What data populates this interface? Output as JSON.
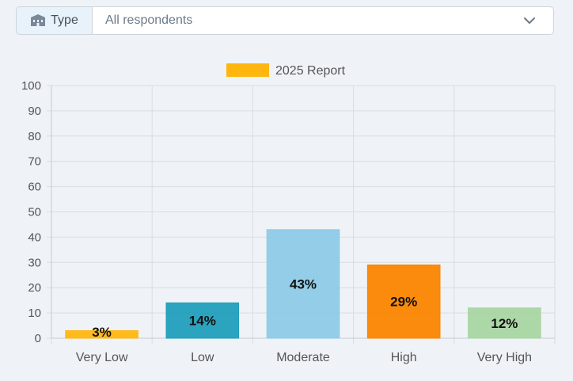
{
  "filter": {
    "label": "Type",
    "label_icon": "building-icon",
    "selected": "All respondents",
    "dropdown_icon": "chevron-down-icon"
  },
  "chart_data": {
    "type": "bar",
    "categories": [
      "Very Low",
      "Low",
      "Moderate",
      "High",
      "Very High"
    ],
    "series": [
      {
        "name": "2025 Report",
        "values": [
          3,
          14,
          43,
          29,
          12
        ]
      }
    ],
    "data_labels": [
      "3%",
      "14%",
      "43%",
      "29%",
      "12%"
    ],
    "bar_colors": [
      "#ffb60f",
      "#219ebc",
      "#8ecae6",
      "#fb8500",
      "#a8d5a2"
    ],
    "legend_color": "#ffb60f",
    "ylim": [
      0,
      100
    ],
    "yticks": [
      0,
      10,
      20,
      30,
      40,
      50,
      60,
      70,
      80,
      90,
      100
    ],
    "grid": true,
    "legend_position": "top-center",
    "xlabel": "",
    "ylabel": "",
    "title": ""
  }
}
